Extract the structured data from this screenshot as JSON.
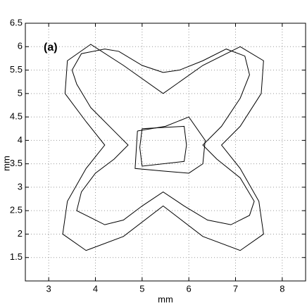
{
  "chart_data": {
    "type": "line",
    "annotation": "(a)",
    "xlabel": "mm",
    "ylabel": "mm",
    "xlim": [
      2.5,
      8.5
    ],
    "ylim": [
      1,
      6.5
    ],
    "xticks": [
      3,
      4,
      5,
      6,
      7,
      8
    ],
    "yticks": [
      1.5,
      2,
      2.5,
      3,
      3.5,
      4,
      4.5,
      5,
      5.5,
      6,
      6.5
    ],
    "grid": true,
    "series": [
      {
        "color": "#000000",
        "x": [
          5.45,
          6.3,
          7.1,
          7.6,
          7.55,
          7.1,
          6.7,
          7.1,
          7.5,
          7.6,
          7.1,
          6.3,
          5.45,
          4.6,
          3.8,
          3.3,
          3.4,
          3.8,
          4.2,
          3.8,
          3.35,
          3.4,
          3.9,
          4.6,
          5.45
        ],
        "y": [
          5.0,
          5.6,
          6.0,
          5.7,
          5.0,
          4.3,
          3.9,
          3.4,
          2.7,
          2.0,
          1.65,
          1.95,
          2.6,
          1.95,
          1.65,
          2.0,
          2.7,
          3.4,
          3.9,
          4.4,
          5.0,
          5.7,
          6.05,
          5.6,
          5.0
        ]
      },
      {
        "color": "#000000",
        "x": [
          5.45,
          5.0,
          4.5,
          4.2,
          3.7,
          3.5,
          3.6,
          3.9,
          4.4,
          4.7,
          4.4,
          4.0,
          3.7,
          3.6,
          3.8,
          4.2,
          4.6,
          5.0,
          5.45,
          5.9,
          6.4,
          6.9,
          7.3,
          7.4,
          7.1,
          6.6,
          6.3,
          6.7,
          7.1,
          7.3,
          7.2,
          6.8,
          6.3,
          5.8,
          5.45
        ],
        "y": [
          5.45,
          5.6,
          5.9,
          5.95,
          5.85,
          5.5,
          5.2,
          4.7,
          4.2,
          3.9,
          3.6,
          3.3,
          2.9,
          2.5,
          2.4,
          2.2,
          2.3,
          2.6,
          2.9,
          2.6,
          2.3,
          2.2,
          2.4,
          2.7,
          3.2,
          3.6,
          3.9,
          4.3,
          4.9,
          5.4,
          5.8,
          5.95,
          5.7,
          5.5,
          5.45
        ]
      },
      {
        "color": "#000000",
        "x": [
          5.0,
          5.9,
          5.95,
          5.9,
          5.0,
          4.95,
          5.0
        ],
        "y": [
          4.25,
          4.3,
          3.9,
          3.55,
          3.45,
          3.85,
          4.25
        ]
      },
      {
        "color": "#000000",
        "x": [
          4.9,
          5.5,
          6.0,
          6.35,
          6.3,
          6.0,
          5.4,
          4.85,
          4.9
        ],
        "y": [
          4.2,
          4.3,
          4.5,
          4.0,
          3.5,
          3.3,
          3.35,
          3.4,
          4.2
        ]
      }
    ]
  }
}
